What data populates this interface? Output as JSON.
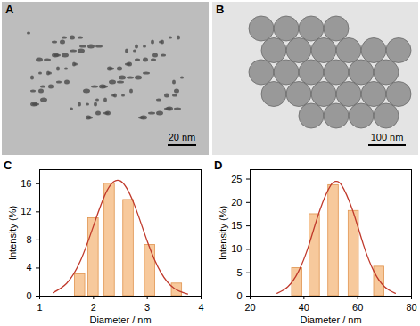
{
  "images": [
    {
      "title": "A",
      "scale_bar": "20 nm"
    },
    {
      "title": "B",
      "scale_bar": "100 nm"
    }
  ],
  "chart_data": [
    {
      "type": "bar",
      "title": "C",
      "x_label": "Diameter / nm",
      "y_label": "Intensity (%)",
      "xlim": [
        1,
        4
      ],
      "xticks": [
        1,
        2,
        3,
        4
      ],
      "ylim": [
        0,
        18
      ],
      "yticks": [
        0,
        4,
        8,
        12,
        16
      ],
      "series": [
        {
          "type": "bar",
          "color": "#f7c99c",
          "x": [
            1.75,
            2.0,
            2.3,
            2.65,
            3.05,
            3.55
          ],
          "values": [
            3.1,
            11.1,
            16.0,
            13.7,
            7.3,
            1.8
          ]
        },
        {
          "type": "line",
          "color": "#c0392b",
          "x": [
            1.25,
            1.5,
            1.75,
            2.0,
            2.25,
            2.5,
            2.75,
            3.0,
            3.25,
            3.5,
            3.75
          ],
          "values": [
            0.5,
            1.8,
            4.9,
            10.0,
            15.0,
            16.4,
            13.2,
            7.8,
            3.4,
            1.1,
            0.3
          ]
        }
      ]
    },
    {
      "type": "bar",
      "title": "D",
      "x_label": "Diameter / nm",
      "y_label": "Intensity (%)",
      "xlim": [
        20,
        80
      ],
      "xticks": [
        20,
        40,
        60,
        80
      ],
      "ylim": [
        0,
        27
      ],
      "yticks": [
        0,
        5,
        10,
        15,
        20,
        25
      ],
      "series": [
        {
          "type": "bar",
          "color": "#f7c99c",
          "x": [
            37.5,
            44,
            51,
            58.5,
            68
          ],
          "values": [
            6.0,
            17.5,
            23.7,
            18.2,
            6.3
          ]
        },
        {
          "type": "line",
          "color": "#c0392b",
          "x": [
            30,
            34,
            38,
            42,
            46,
            50,
            52,
            54,
            58,
            62,
            66,
            70,
            74
          ],
          "values": [
            0.6,
            2.0,
            5.3,
            11.2,
            18.5,
            23.7,
            24.5,
            23.7,
            18.5,
            11.2,
            5.3,
            2.0,
            0.6
          ]
        }
      ]
    }
  ]
}
